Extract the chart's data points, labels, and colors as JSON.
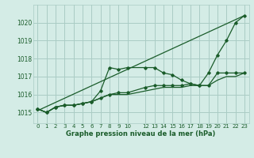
{
  "background_color": "#d4ece6",
  "grid_color": "#aaccc4",
  "line_color": "#1a5c2a",
  "title": "Graphe pression niveau de la mer (hPa)",
  "ylabel_ticks": [
    1015,
    1016,
    1017,
    1018,
    1019,
    1020
  ],
  "ylim": [
    1014.4,
    1021.0
  ],
  "xlim": [
    -0.5,
    23.5
  ],
  "xticks": [
    0,
    1,
    2,
    3,
    4,
    5,
    6,
    7,
    8,
    9,
    10,
    12,
    13,
    14,
    15,
    16,
    17,
    18,
    19,
    20,
    21,
    22,
    23
  ],
  "series": [
    {
      "x": [
        0,
        1,
        2,
        3,
        4,
        5,
        6,
        7,
        8,
        9,
        10,
        12,
        13,
        14,
        15,
        16,
        17,
        18,
        19,
        20,
        21,
        22,
        23
      ],
      "y": [
        1015.2,
        1015.0,
        1015.3,
        1015.4,
        1015.4,
        1015.5,
        1015.6,
        1016.2,
        1017.5,
        1017.4,
        1017.5,
        1017.5,
        1017.5,
        1017.2,
        1017.1,
        1016.8,
        1016.6,
        1016.5,
        1017.2,
        1018.2,
        1019.0,
        1020.0,
        1020.4
      ],
      "marker": true
    },
    {
      "x": [
        0,
        23
      ],
      "y": [
        1015.1,
        1020.4
      ],
      "marker": false
    },
    {
      "x": [
        0,
        1,
        2,
        3,
        4,
        5,
        6,
        7,
        8,
        9,
        10,
        12,
        13,
        14,
        15,
        16,
        17,
        18,
        19,
        20,
        21,
        22,
        23
      ],
      "y": [
        1015.2,
        1015.0,
        1015.3,
        1015.4,
        1015.4,
        1015.5,
        1015.6,
        1015.8,
        1016.0,
        1016.1,
        1016.1,
        1016.4,
        1016.5,
        1016.5,
        1016.5,
        1016.5,
        1016.6,
        1016.5,
        1016.5,
        1017.2,
        1017.2,
        1017.2,
        1017.2
      ],
      "marker": true
    },
    {
      "x": [
        0,
        1,
        2,
        3,
        4,
        5,
        6,
        7,
        8,
        9,
        10,
        12,
        13,
        14,
        15,
        16,
        17,
        18,
        19,
        20,
        21,
        22,
        23
      ],
      "y": [
        1015.2,
        1015.0,
        1015.3,
        1015.4,
        1015.4,
        1015.5,
        1015.6,
        1015.8,
        1016.0,
        1016.0,
        1016.0,
        1016.2,
        1016.3,
        1016.4,
        1016.4,
        1016.4,
        1016.5,
        1016.5,
        1016.5,
        1016.8,
        1017.0,
        1017.0,
        1017.2
      ],
      "marker": false
    }
  ]
}
